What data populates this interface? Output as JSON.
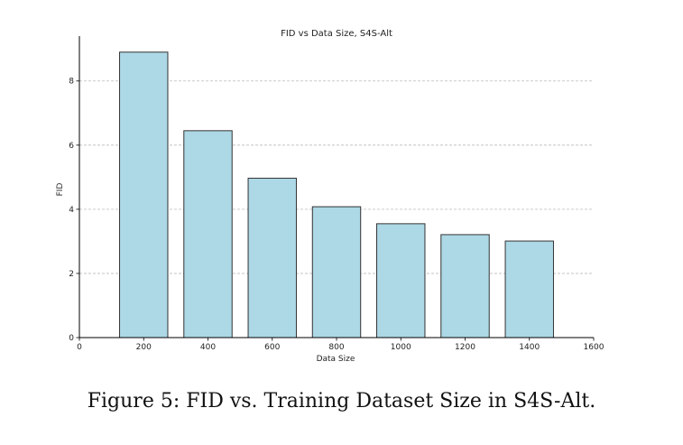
{
  "chart_data": {
    "type": "bar",
    "title": "FID vs Data Size, S4S-Alt",
    "xlabel": "Data Size",
    "ylabel": "FID",
    "x": [
      200,
      400,
      600,
      800,
      1000,
      1200,
      1400
    ],
    "values": [
      8.9,
      6.45,
      4.97,
      4.08,
      3.55,
      3.21,
      3.01
    ],
    "xlim": [
      0,
      1600
    ],
    "ylim": [
      0,
      9.4
    ],
    "xticks": [
      0,
      200,
      400,
      600,
      800,
      1000,
      1200,
      1400,
      1600
    ],
    "yticks": [
      0,
      2,
      4,
      6,
      8
    ],
    "bar_width": 150,
    "grid": "y-dashed",
    "bar_color": "#add8e6",
    "edge_color": "#333333"
  },
  "caption": "Figure 5: FID vs. Training Dataset Size in S4S-Alt."
}
